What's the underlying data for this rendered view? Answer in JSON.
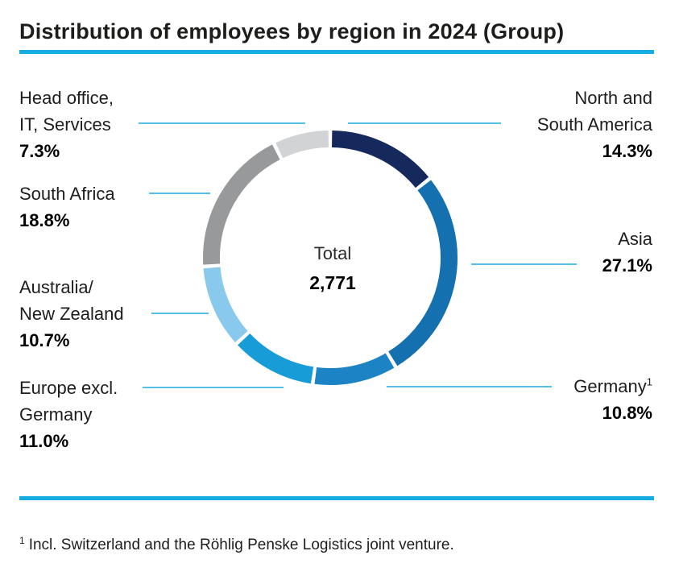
{
  "title": "Distribution of employees by region in 2024 (Group)",
  "colors": {
    "accent_rule": "#16ade2",
    "leader_line": "#55bfe7",
    "text": "#1d1d1b"
  },
  "center": {
    "total_label": "Total",
    "total_value": "2,771"
  },
  "footnote": {
    "marker": "1",
    "text": "Incl. Switzerland and the Röhlig Penske Logistics joint venture."
  },
  "labels": {
    "left": [
      {
        "lines": [
          "Head office,",
          "IT, Services"
        ],
        "pct": "7.3%"
      },
      {
        "lines": [
          "South Africa"
        ],
        "pct": "18.8%"
      },
      {
        "lines": [
          "Australia/",
          "New Zealand"
        ],
        "pct": "10.7%"
      },
      {
        "lines": [
          "Europe excl.",
          "Germany"
        ],
        "pct": "11.0%"
      }
    ],
    "right": [
      {
        "lines": [
          "North and",
          "South America"
        ],
        "pct": "14.3%"
      },
      {
        "lines": [
          "Asia"
        ],
        "pct": "27.1%"
      },
      {
        "lines": [
          "Germany"
        ],
        "sup": "1",
        "pct": "10.8%"
      }
    ]
  },
  "chart_data": {
    "type": "pie",
    "donut": true,
    "title": "Distribution of employees by region in 2024 (Group)",
    "center_label": "Total",
    "center_value": 2771,
    "units": "%",
    "start_angle_deg": 0,
    "direction": "clockwise",
    "segments": [
      {
        "label": "North and South America",
        "value": 14.3,
        "color": "#15295c"
      },
      {
        "label": "Asia",
        "value": 27.1,
        "color": "#1570af"
      },
      {
        "label": "Germany",
        "value": 10.8,
        "color": "#1c83c5",
        "footnote_marker": "1"
      },
      {
        "label": "Europe excl. Germany",
        "value": 11.0,
        "color": "#189cd8"
      },
      {
        "label": "Australia/New Zealand",
        "value": 10.7,
        "color": "#89c9ed"
      },
      {
        "label": "South Africa",
        "value": 18.8,
        "color": "#98999b"
      },
      {
        "label": "Head office, IT, Services",
        "value": 7.3,
        "color": "#d2d3d4"
      }
    ]
  }
}
